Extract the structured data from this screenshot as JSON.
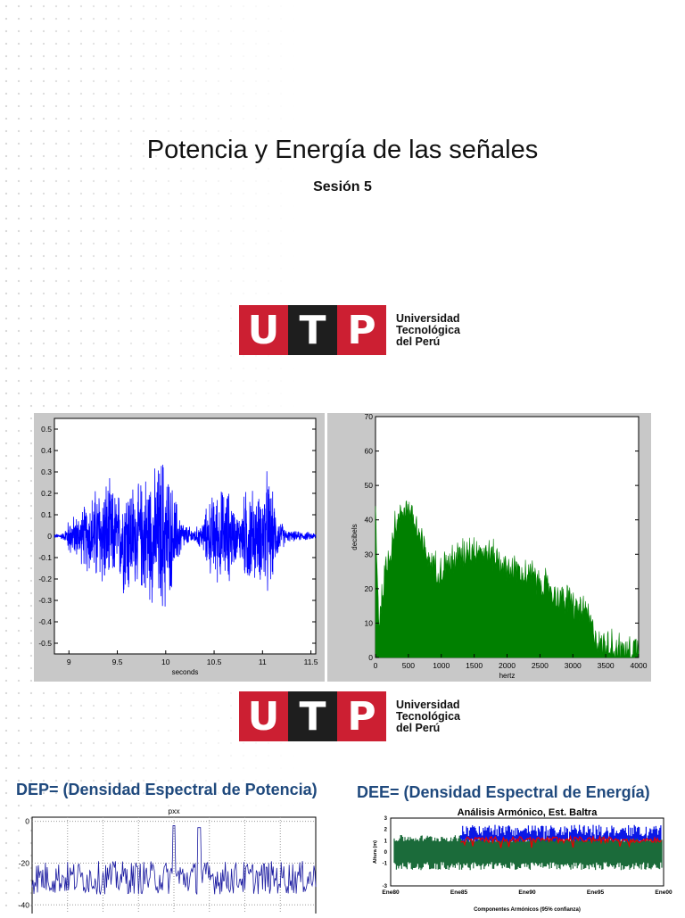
{
  "slide": {
    "title": "Potencia y Energía de las señales",
    "subtitle": "Sesión 5"
  },
  "logo": {
    "letters": [
      "U",
      "T",
      "P"
    ],
    "name_lines": [
      "Universidad",
      "Tecnológica",
      "del Perú"
    ],
    "colors": {
      "red": "#cc1f32",
      "dark": "#1e1e1e"
    }
  },
  "headings": {
    "dep": "DEP= (Densidad Espectral de Potencia)",
    "dee": "DEE= (Densidad Espectral de Energía)"
  },
  "chart_data": [
    {
      "type": "line",
      "xlabel": "seconds",
      "ylabel": "",
      "xlim": [
        8.85,
        11.55
      ],
      "ylim": [
        -0.55,
        0.55
      ],
      "xticks": [
        "9",
        "9.5",
        "10",
        "10.5",
        "11",
        "11.5"
      ],
      "yticks": [
        "0.5",
        "0.4",
        "0.3",
        "0.2",
        "0.1",
        "0",
        "-0.1",
        "-0.2",
        "-0.3",
        "-0.4",
        "-0.5"
      ],
      "color": "#0000ff",
      "envelope": [
        {
          "x": 8.85,
          "amp": 0.01
        },
        {
          "x": 8.95,
          "amp": 0.02
        },
        {
          "x": 9.0,
          "amp": 0.1
        },
        {
          "x": 9.1,
          "amp": 0.12
        },
        {
          "x": 9.2,
          "amp": 0.2
        },
        {
          "x": 9.3,
          "amp": 0.28
        },
        {
          "x": 9.4,
          "amp": 0.3
        },
        {
          "x": 9.5,
          "amp": 0.22
        },
        {
          "x": 9.6,
          "amp": 0.35
        },
        {
          "x": 9.7,
          "amp": 0.25
        },
        {
          "x": 9.8,
          "amp": 0.35
        },
        {
          "x": 9.9,
          "amp": 0.35
        },
        {
          "x": 9.97,
          "amp": 0.46
        },
        {
          "x": 10.05,
          "amp": 0.3
        },
        {
          "x": 10.15,
          "amp": 0.12
        },
        {
          "x": 10.2,
          "amp": 0.06
        },
        {
          "x": 10.3,
          "amp": 0.04
        },
        {
          "x": 10.38,
          "amp": 0.08
        },
        {
          "x": 10.45,
          "amp": 0.2
        },
        {
          "x": 10.55,
          "amp": 0.25
        },
        {
          "x": 10.65,
          "amp": 0.25
        },
        {
          "x": 10.75,
          "amp": 0.1
        },
        {
          "x": 10.85,
          "amp": 0.3
        },
        {
          "x": 10.95,
          "amp": 0.2
        },
        {
          "x": 11.05,
          "amp": 0.35
        },
        {
          "x": 11.15,
          "amp": 0.12
        },
        {
          "x": 11.25,
          "amp": 0.03
        },
        {
          "x": 11.5,
          "amp": 0.02
        }
      ]
    },
    {
      "type": "area",
      "xlabel": "hertz",
      "ylabel": "decibels",
      "xlim": [
        0,
        4000
      ],
      "ylim": [
        0,
        70
      ],
      "xticks": [
        "0",
        "500",
        "1000",
        "1500",
        "2000",
        "2500",
        "3000",
        "3500",
        "4000"
      ],
      "yticks": [
        "70",
        "60",
        "50",
        "40",
        "30",
        "20",
        "10",
        "0"
      ],
      "color": "#008000",
      "envelope": [
        {
          "x": 0,
          "y": 45
        },
        {
          "x": 50,
          "y": 12
        },
        {
          "x": 150,
          "y": 25
        },
        {
          "x": 300,
          "y": 40
        },
        {
          "x": 450,
          "y": 46
        },
        {
          "x": 600,
          "y": 40
        },
        {
          "x": 800,
          "y": 30
        },
        {
          "x": 1000,
          "y": 27
        },
        {
          "x": 1200,
          "y": 30
        },
        {
          "x": 1400,
          "y": 33
        },
        {
          "x": 1600,
          "y": 33
        },
        {
          "x": 1800,
          "y": 31
        },
        {
          "x": 2000,
          "y": 28
        },
        {
          "x": 2200,
          "y": 26
        },
        {
          "x": 2400,
          "y": 25
        },
        {
          "x": 2600,
          "y": 22
        },
        {
          "x": 2800,
          "y": 19
        },
        {
          "x": 3000,
          "y": 17
        },
        {
          "x": 3200,
          "y": 14
        },
        {
          "x": 3400,
          "y": 6
        },
        {
          "x": 3600,
          "y": 5
        },
        {
          "x": 3800,
          "y": 3
        },
        {
          "x": 4000,
          "y": 5
        }
      ]
    },
    {
      "type": "line",
      "title": "pxx",
      "xlabel": "",
      "ylabel": "",
      "ylim": [
        -45,
        2
      ],
      "yticks": [
        "0",
        "-20",
        "-40"
      ],
      "color": "#1a1aa0",
      "baseline": -27,
      "peaks": [
        {
          "x": 0.5,
          "y": -2
        },
        {
          "x": 0.59,
          "y": -3
        }
      ]
    },
    {
      "type": "area",
      "title": "Análisis Armónico, Est. Baltra",
      "xlabel": "Componentes Armónicos (95% confianza)",
      "ylabel": "Altura (m)",
      "ylim": [
        -3,
        3
      ],
      "yticks": [
        "3",
        "2",
        "1",
        "0",
        "-1",
        "-3"
      ],
      "xticks": [
        "Ene80",
        "Ene85",
        "Ene90",
        "Ene95",
        "Ene00"
      ],
      "series": [
        {
          "color": "#1b6b3a",
          "from": "Ene80",
          "to": "Ene00"
        },
        {
          "color": "#0a18e6",
          "from": "Ene85",
          "to": "Ene00"
        },
        {
          "color": "#e60000",
          "from": "Ene85",
          "to": "Ene00"
        }
      ]
    }
  ]
}
